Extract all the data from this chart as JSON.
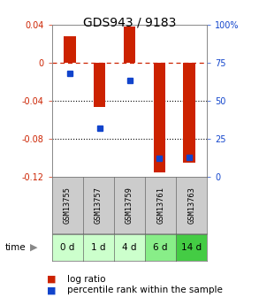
{
  "title": "GDS943 / 9183",
  "samples": [
    "GSM13755",
    "GSM13757",
    "GSM13759",
    "GSM13761",
    "GSM13763"
  ],
  "time_labels": [
    "0 d",
    "1 d",
    "4 d",
    "6 d",
    "14 d"
  ],
  "log_ratios": [
    0.028,
    -0.047,
    0.038,
    -0.115,
    -0.105
  ],
  "percentile_ranks": [
    68,
    32,
    63,
    12,
    13
  ],
  "ylim_left": [
    -0.12,
    0.04
  ],
  "ylim_right": [
    0,
    100
  ],
  "bar_color": "#cc2200",
  "dot_color": "#1144cc",
  "bg_color": "#ffffff",
  "plot_bg": "#ffffff",
  "sample_bg": "#cccccc",
  "time_bg_colors": [
    "#ccffcc",
    "#ccffcc",
    "#ccffcc",
    "#88ee88",
    "#44cc44"
  ],
  "title_fontsize": 10,
  "tick_fontsize": 7,
  "label_fontsize": 7.5,
  "legend_fontsize": 7.5
}
